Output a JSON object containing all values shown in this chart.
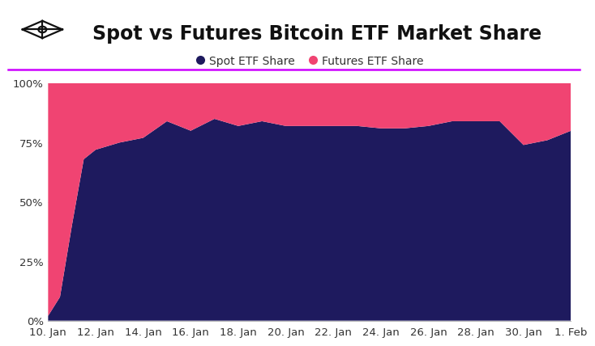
{
  "title": "Spot vs Futures Bitcoin ETF Market Share",
  "spot_label": "Spot ETF Share",
  "futures_label": "Futures ETF Share",
  "spot_color": "#1e1a5e",
  "futures_color": "#f04472",
  "background_color": "#ffffff",
  "x_labels": [
    "10. Jan",
    "12. Jan",
    "14. Jan",
    "16. Jan",
    "18. Jan",
    "20. Jan",
    "22. Jan",
    "24. Jan",
    "26. Jan",
    "28. Jan",
    "30. Jan",
    "1. Feb"
  ],
  "x_tick_positions": [
    0,
    2,
    4,
    6,
    8,
    10,
    12,
    14,
    16,
    18,
    20,
    22
  ],
  "spot_x": [
    0,
    0.5,
    1.0,
    1.5,
    2,
    3,
    4,
    5,
    6,
    7,
    8,
    9,
    10,
    11,
    12,
    13,
    14,
    15,
    16,
    17,
    18,
    19,
    20,
    21,
    22
  ],
  "spot_y": [
    2,
    10,
    40,
    68,
    72,
    75,
    77,
    84,
    80,
    85,
    82,
    84,
    82,
    82,
    82,
    82,
    81,
    81,
    82,
    84,
    84,
    84,
    74,
    76,
    80
  ],
  "ylim": [
    0,
    100
  ],
  "yticks": [
    0,
    25,
    50,
    75,
    100
  ],
  "ytick_labels": [
    "0%",
    "25%",
    "50%",
    "75%",
    "100%"
  ],
  "accent_line_color": "#cc00ff",
  "title_fontsize": 17,
  "legend_fontsize": 10,
  "tick_fontsize": 9.5,
  "logo_color": "#111111"
}
